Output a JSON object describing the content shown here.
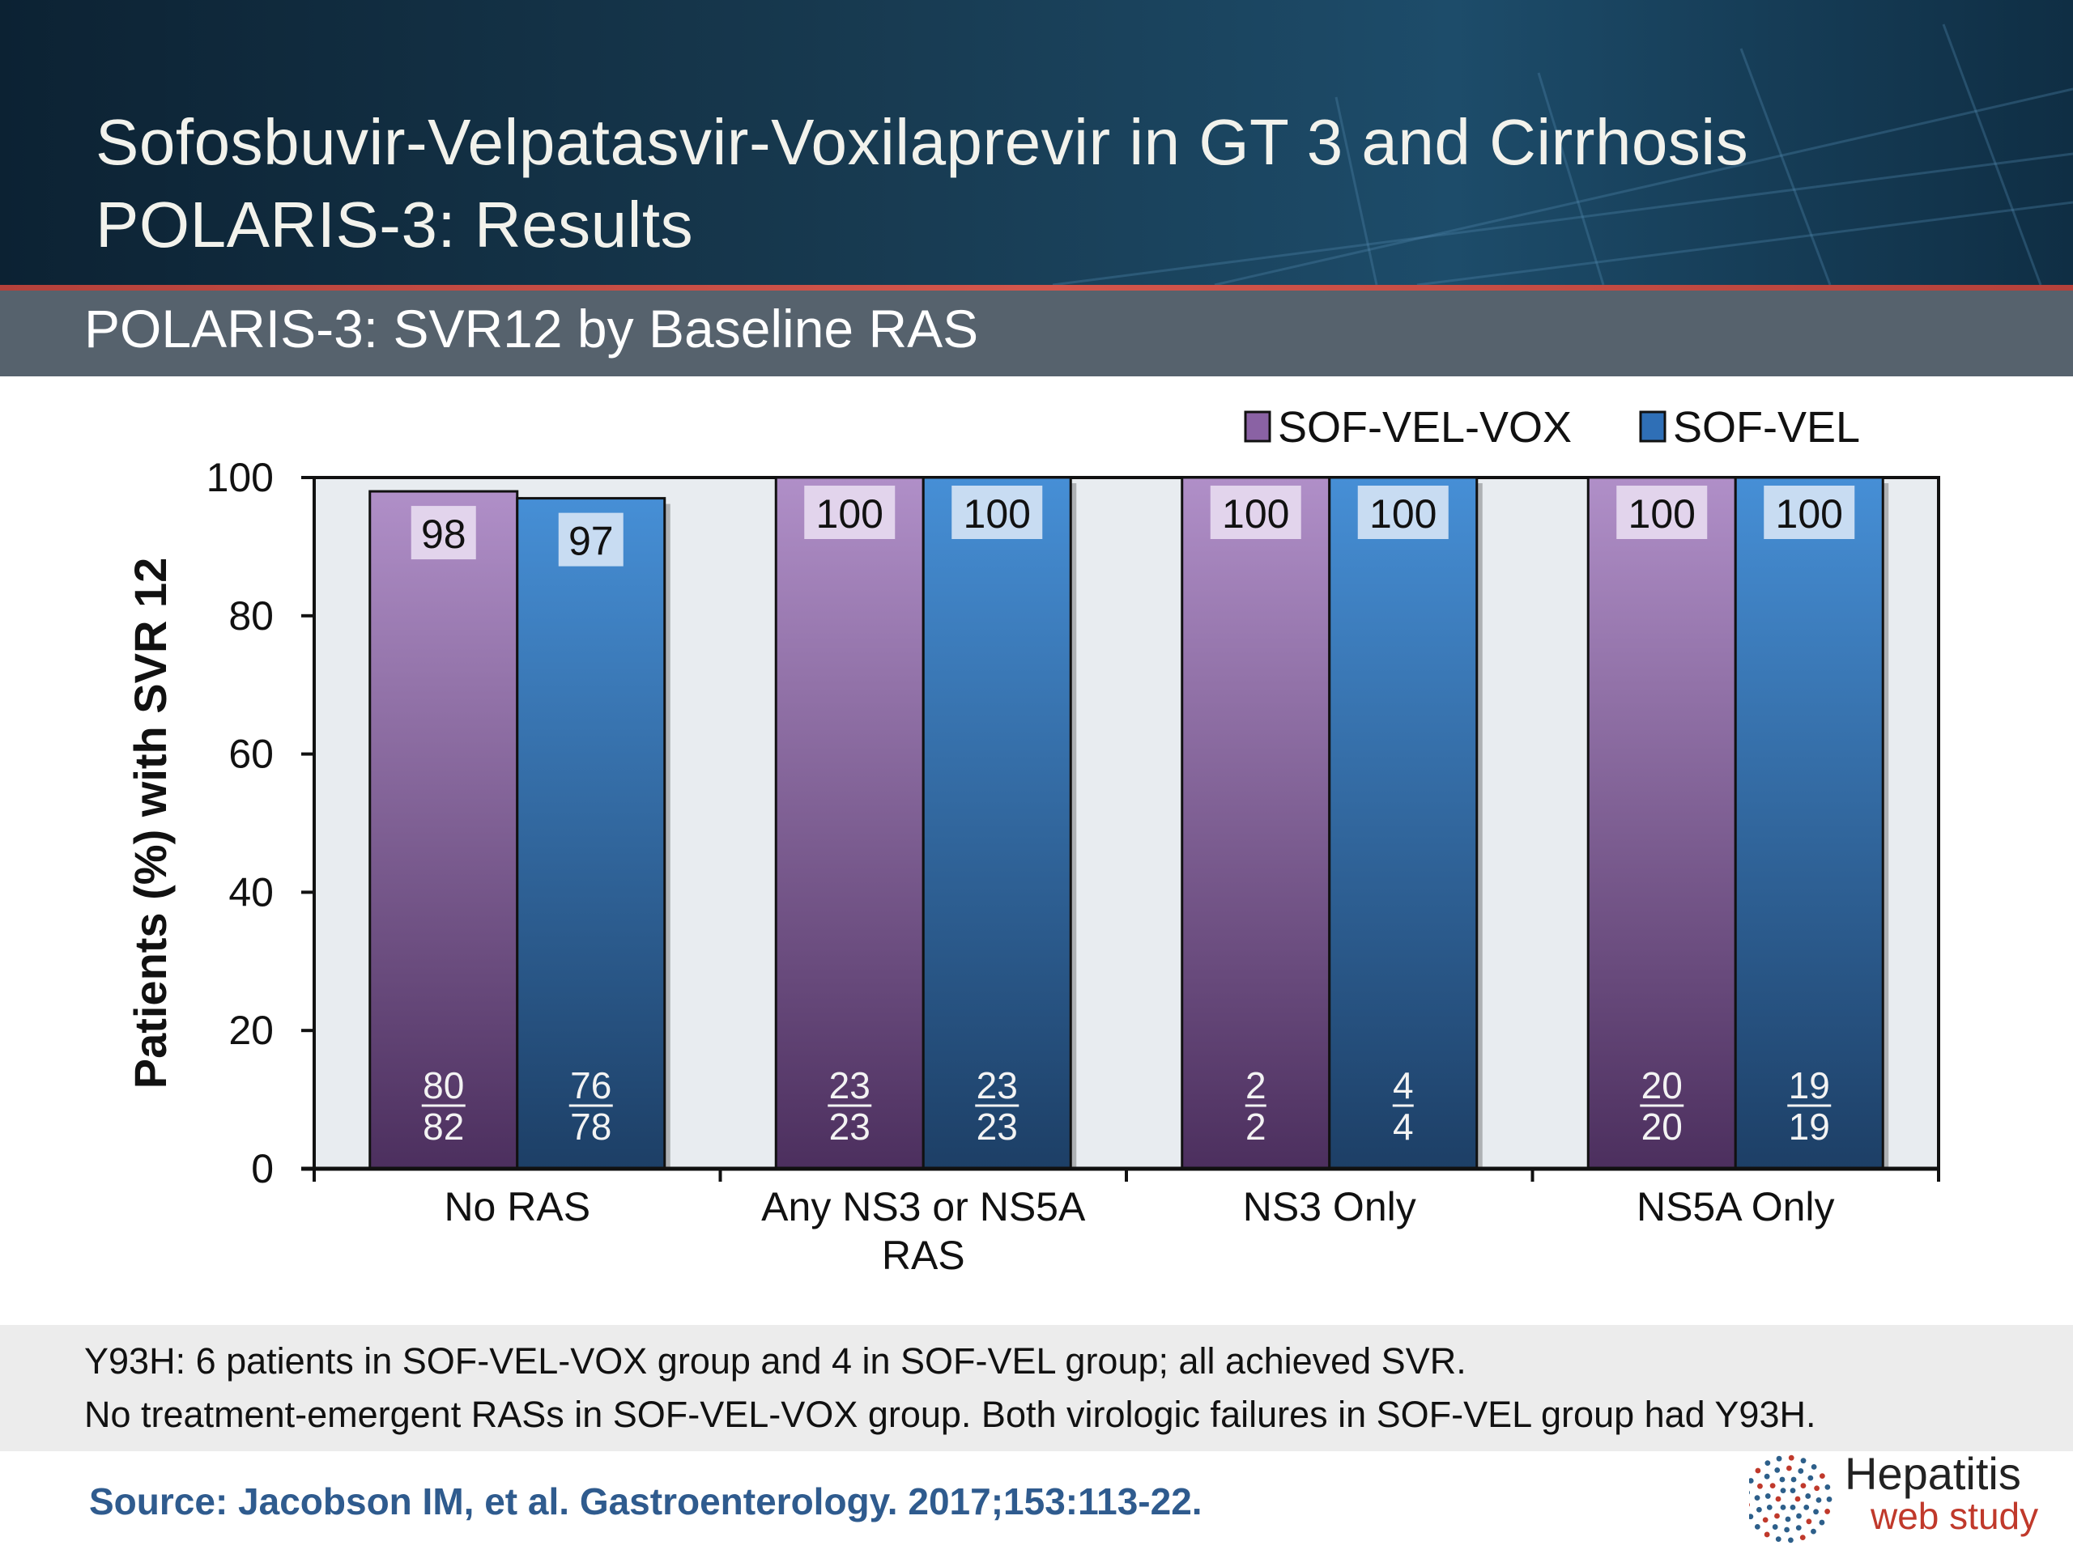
{
  "header": {
    "title_line1": "Sofosbuvir-Velpatasvir-Voxilaprevir in GT 3 and Cirrhosis",
    "title_line2": "POLARIS-3: Results"
  },
  "subheader": {
    "title": "POLARIS-3: SVR12 by Baseline RAS"
  },
  "colors": {
    "header_bg": "#17394f",
    "accent_red": "#c9463f",
    "subheader_bg": "#56626d",
    "plot_bg": "#e8ecf0",
    "sof_vel_vox": "#9c76b4",
    "sof_vel": "#3d7fc8",
    "source_text": "#2f5b8e"
  },
  "chart_data": {
    "type": "bar",
    "title": "",
    "ylabel": "Patients (%) with SVR 12",
    "xlabel": "",
    "ylim": [
      0,
      100
    ],
    "yticks": [
      0,
      20,
      40,
      60,
      80,
      100
    ],
    "grid": false,
    "legend_position": "top-right",
    "categories": [
      [
        "No RAS"
      ],
      [
        "Any NS3 or NS5A",
        "RAS"
      ],
      [
        "NS3 Only"
      ],
      [
        "NS5A Only"
      ]
    ],
    "series": [
      {
        "name": "SOF-VEL-VOX",
        "values": [
          98,
          100,
          100,
          100
        ],
        "fractions": [
          [
            "80",
            "82"
          ],
          [
            "23",
            "23"
          ],
          [
            "2",
            "2"
          ],
          [
            "20",
            "20"
          ]
        ]
      },
      {
        "name": "SOF-VEL",
        "values": [
          97,
          100,
          100,
          100
        ],
        "fractions": [
          [
            "76",
            "78"
          ],
          [
            "23",
            "23"
          ],
          [
            "4",
            "4"
          ],
          [
            "19",
            "19"
          ]
        ]
      }
    ]
  },
  "footnotes": [
    "Y93H: 6 patients in SOF-VEL-VOX group and 4 in SOF-VEL group; all achieved SVR.",
    "No treatment-emergent RASs in SOF-VEL-VOX group. Both virologic failures in SOF-VEL group had Y93H."
  ],
  "source": "Source: Jacobson IM, et al. Gastroenterology. 2017;153:113-22.",
  "logo": {
    "line1": "Hepatitis",
    "line2": "web study"
  }
}
